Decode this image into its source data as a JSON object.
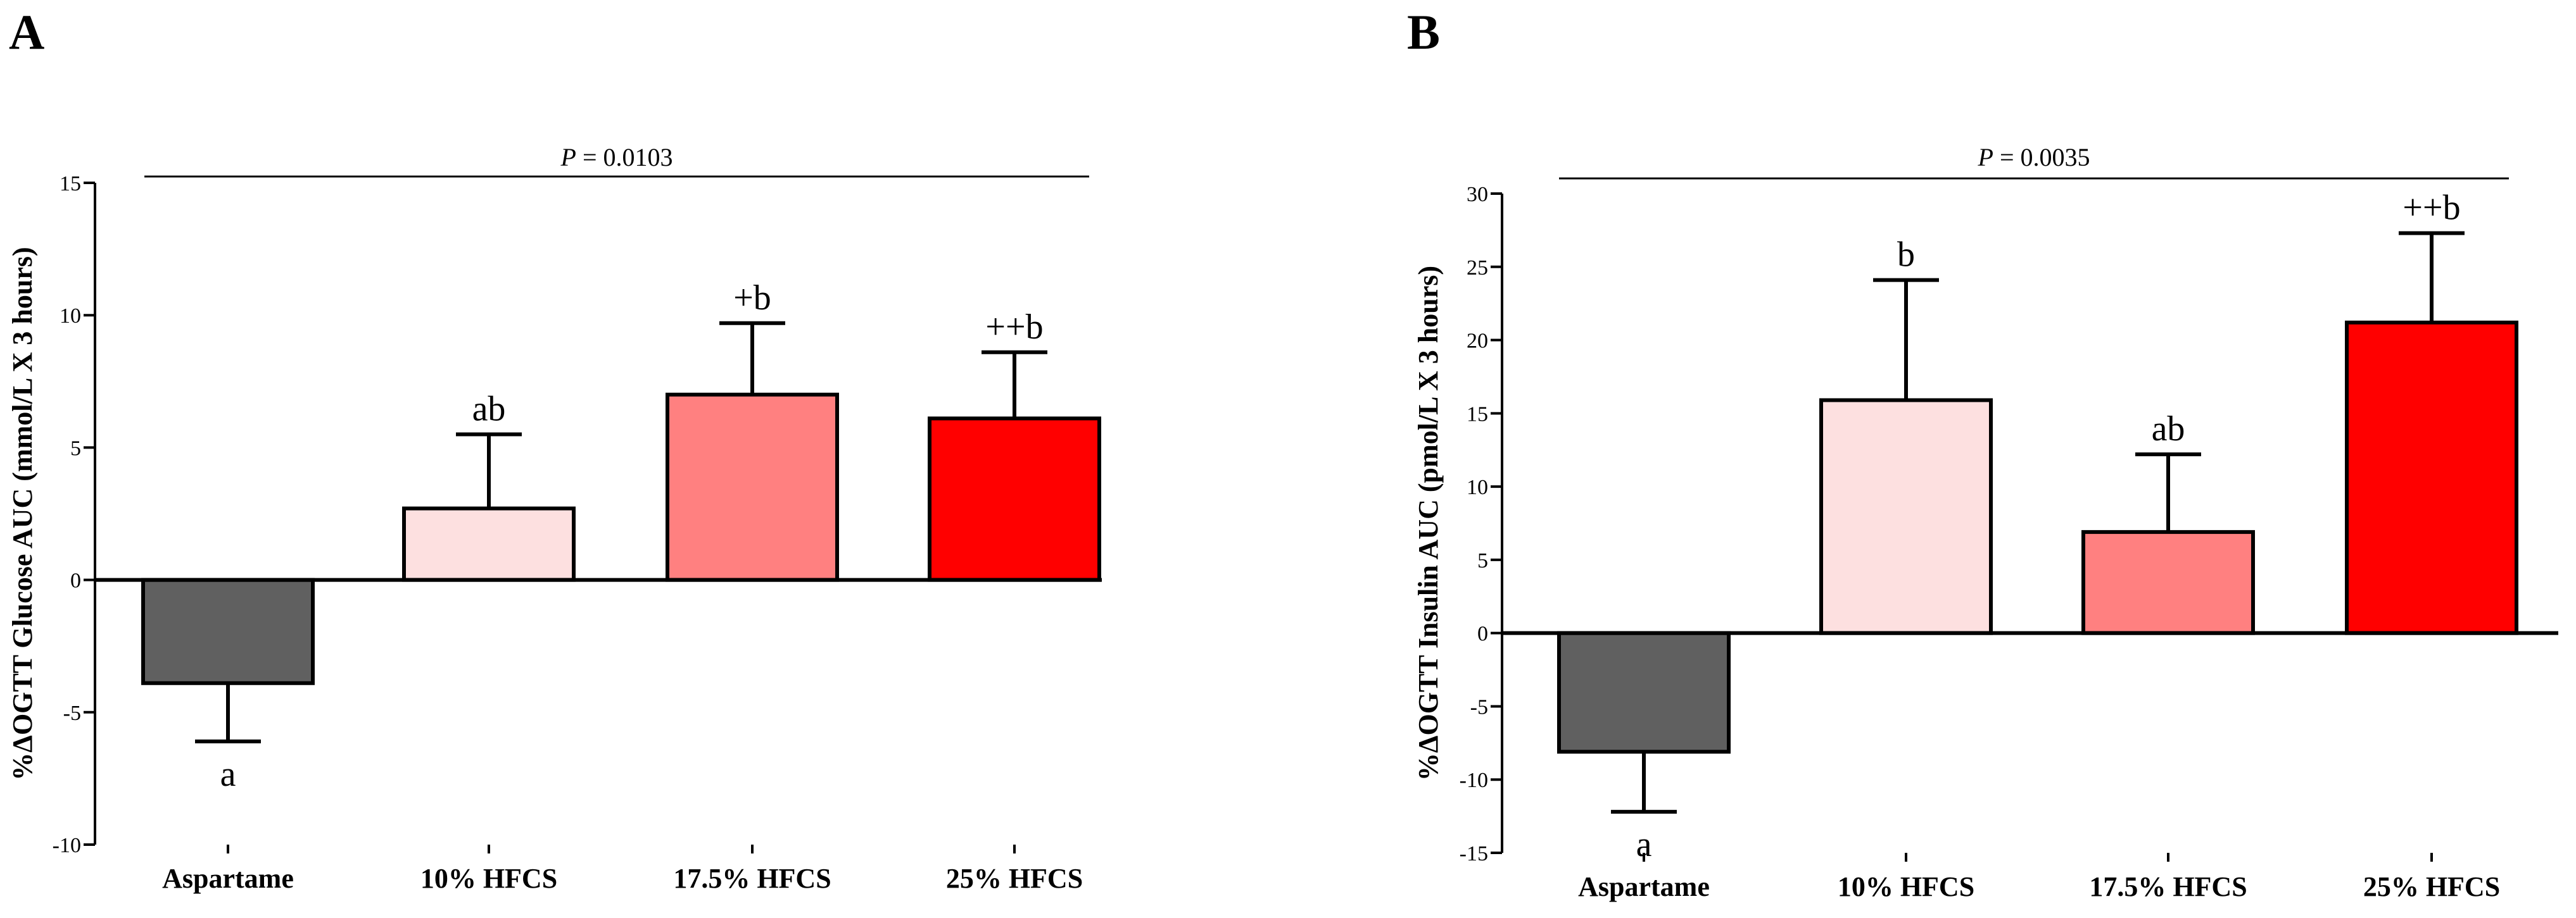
{
  "panels": {
    "A": {
      "label": "A"
    },
    "B": {
      "label": "B"
    }
  },
  "chart_data": [
    {
      "type": "bar",
      "panel": "A",
      "categories": [
        "Aspartame",
        "10% HFCS",
        "17.5% HFCS",
        "25% HFCS"
      ],
      "values": [
        -3.9,
        2.7,
        7.0,
        6.1
      ],
      "errors": [
        2.2,
        2.8,
        2.7,
        2.5
      ],
      "bar_colors": [
        "#606060",
        "#fde0e0",
        "#ff8080",
        "#ff0000"
      ],
      "significance": [
        "a",
        "ab",
        "+b",
        "++b"
      ],
      "ylabel": "%ΔOGTT Glucose AUC (mmol/L X 3 hours)",
      "ylim": [
        -10,
        15
      ],
      "yticks": [
        -10,
        -5,
        0,
        5,
        10,
        15
      ],
      "p_value": {
        "prefix": "P",
        "text": " = 0.0103"
      }
    },
    {
      "type": "bar",
      "panel": "B",
      "categories": [
        "Aspartame",
        "10% HFCS",
        "17.5% HFCS",
        "25% HFCS"
      ],
      "values": [
        -8.1,
        15.9,
        6.9,
        21.2
      ],
      "errors": [
        4.1,
        8.2,
        5.3,
        6.1
      ],
      "bar_colors": [
        "#606060",
        "#fde0e0",
        "#ff8080",
        "#ff0000"
      ],
      "significance": [
        "a",
        "b",
        "ab",
        "++b"
      ],
      "ylabel": "%ΔOGTT Insulin AUC (pmol/L X 3 hours)",
      "ylim": [
        -15,
        30
      ],
      "yticks": [
        -15,
        -10,
        -5,
        0,
        5,
        10,
        15,
        20,
        25,
        30
      ],
      "p_value": {
        "prefix": "P",
        "text": " = 0.0035"
      }
    }
  ]
}
